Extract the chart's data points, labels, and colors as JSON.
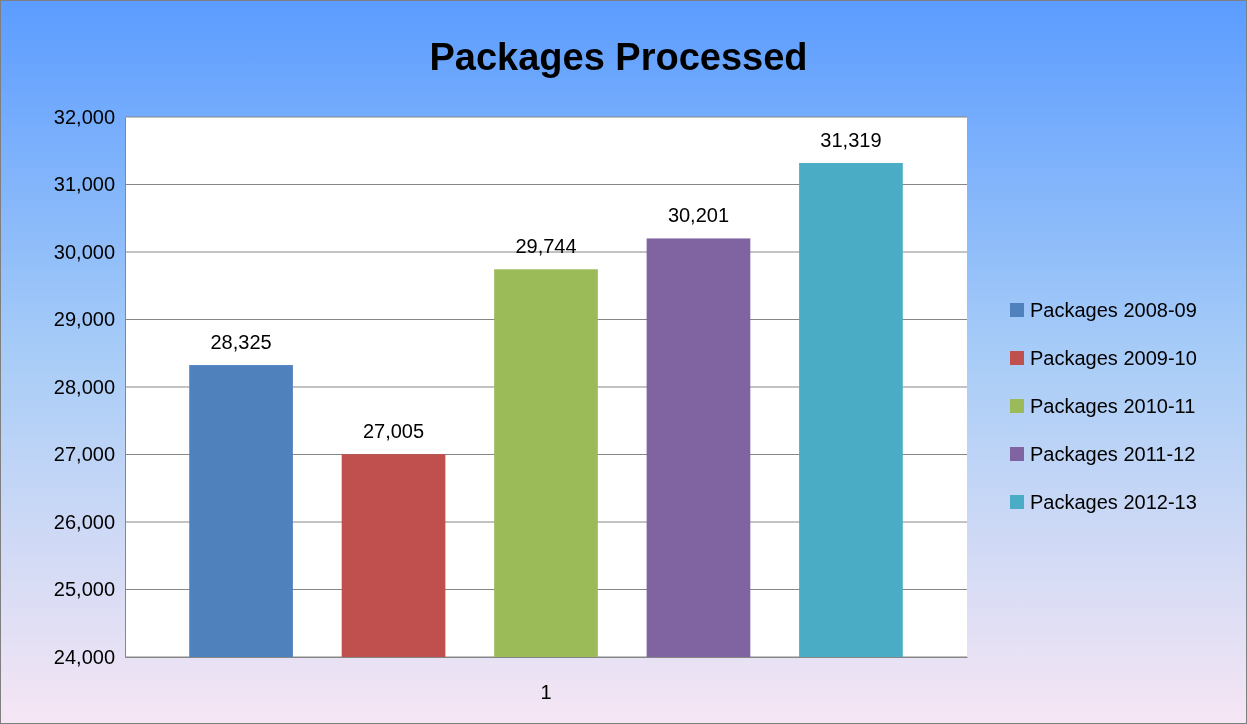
{
  "chart_data": {
    "type": "bar",
    "title": "Packages Processed",
    "categories": [
      "1"
    ],
    "series": [
      {
        "name": "Packages 2008-09",
        "color": "#4f81bd",
        "values": [
          28325
        ],
        "value_labels": [
          "28,325"
        ]
      },
      {
        "name": "Packages 2009-10",
        "color": "#c0504d",
        "values": [
          27005
        ],
        "value_labels": [
          "27,005"
        ]
      },
      {
        "name": "Packages 2010-11",
        "color": "#9bbb59",
        "values": [
          29744
        ],
        "value_labels": [
          "29,744"
        ]
      },
      {
        "name": "Packages 2011-12",
        "color": "#8064a2",
        "values": [
          30201
        ],
        "value_labels": [
          "30,201"
        ]
      },
      {
        "name": "Packages 2012-13",
        "color": "#4bacc6",
        "values": [
          31319
        ],
        "value_labels": [
          "31,319"
        ]
      }
    ],
    "ylim": [
      24000,
      32000
    ],
    "yticks": [
      {
        "value": 24000,
        "label": "24,000"
      },
      {
        "value": 25000,
        "label": "25,000"
      },
      {
        "value": 26000,
        "label": "26,000"
      },
      {
        "value": 27000,
        "label": "27,000"
      },
      {
        "value": 28000,
        "label": "28,000"
      },
      {
        "value": 29000,
        "label": "29,000"
      },
      {
        "value": 30000,
        "label": "30,000"
      },
      {
        "value": 31000,
        "label": "31,000"
      },
      {
        "value": 32000,
        "label": "32,000"
      }
    ],
    "grid": "y",
    "legend": "right"
  }
}
